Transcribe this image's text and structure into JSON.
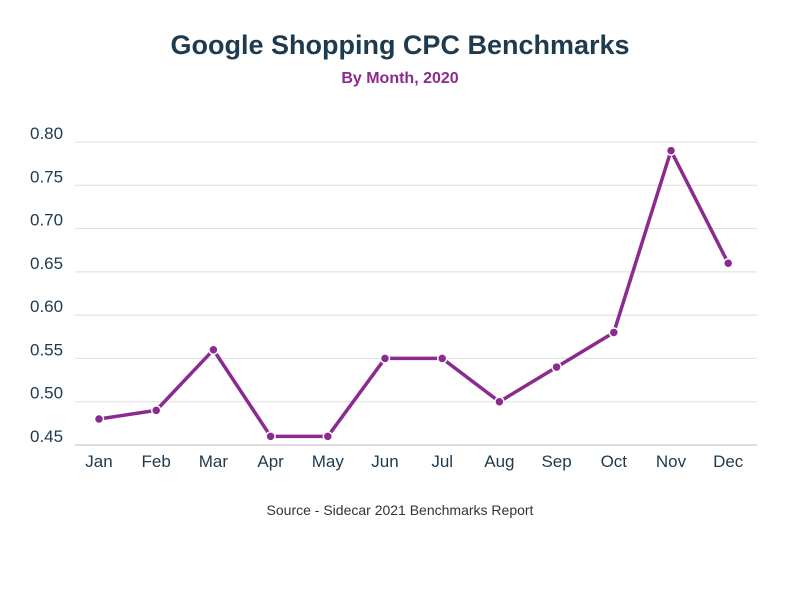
{
  "chart_data": {
    "type": "line",
    "title": "Google Shopping CPC Benchmarks",
    "subtitle": "By Month, 2020",
    "source": "Source - Sidecar 2021 Benchmarks Report",
    "categories": [
      "Jan",
      "Feb",
      "Mar",
      "Apr",
      "May",
      "Jun",
      "Jul",
      "Aug",
      "Sep",
      "Oct",
      "Nov",
      "Dec"
    ],
    "values": [
      0.48,
      0.49,
      0.56,
      0.46,
      0.46,
      0.55,
      0.55,
      0.5,
      0.54,
      0.58,
      0.79,
      0.66
    ],
    "yticks": [
      "0.45",
      "0.50",
      "0.55",
      "0.60",
      "0.65",
      "0.70",
      "0.75",
      "0.80"
    ],
    "ylim": [
      0.45,
      0.8
    ],
    "grid": true,
    "line_color": "#8b2b8f",
    "title_color": "#1d3a4f"
  }
}
